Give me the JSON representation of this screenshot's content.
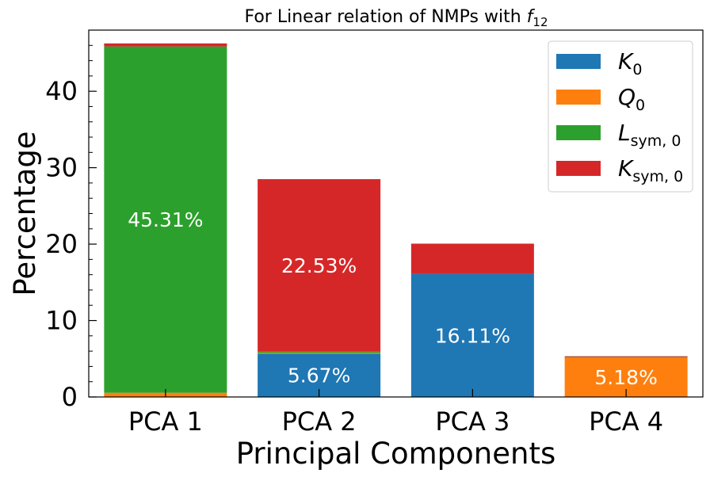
{
  "chart_data": {
    "type": "bar",
    "stacked": true,
    "title": {
      "prefix": "For Linear relation of NMPs with ",
      "var": "f",
      "sub": "12"
    },
    "xlabel": "Principal Components",
    "ylabel": "Percentage",
    "categories": [
      "PCA 1",
      "PCA 2",
      "PCA 3",
      "PCA 4"
    ],
    "ylim": [
      0,
      48
    ],
    "yticks": [
      "0",
      "10",
      "20",
      "30",
      "40"
    ],
    "legend_position": "top-right",
    "series": [
      {
        "name": "K_0",
        "legend": {
          "base": "K",
          "sub": "0"
        },
        "color": "#1f77b4",
        "values": [
          0.0,
          5.67,
          16.11,
          0.0
        ]
      },
      {
        "name": "Q_0",
        "legend": {
          "base": "Q",
          "sub": "0"
        },
        "color": "#ff7f0e",
        "values": [
          0.55,
          0.1,
          0.0,
          5.18
        ]
      },
      {
        "name": "L_sym,0",
        "legend": {
          "base": "L",
          "sub": "sym, 0"
        },
        "color": "#2ca02c",
        "values": [
          45.31,
          0.2,
          0.0,
          0.05
        ]
      },
      {
        "name": "K_sym,0",
        "legend": {
          "base": "K",
          "sub": "sym, 0"
        },
        "color": "#d62728",
        "values": [
          0.4,
          22.53,
          3.95,
          0.1
        ]
      }
    ],
    "bar_labels": [
      {
        "category": "PCA 1",
        "series": "L_sym,0",
        "text": "45.31%"
      },
      {
        "category": "PCA 2",
        "series": "K_sym,0",
        "text": "22.53%"
      },
      {
        "category": "PCA 2",
        "series": "K_0",
        "text": "5.67%"
      },
      {
        "category": "PCA 3",
        "series": "K_0",
        "text": "16.11%"
      },
      {
        "category": "PCA 4",
        "series": "Q_0",
        "text": "5.18%"
      }
    ]
  }
}
